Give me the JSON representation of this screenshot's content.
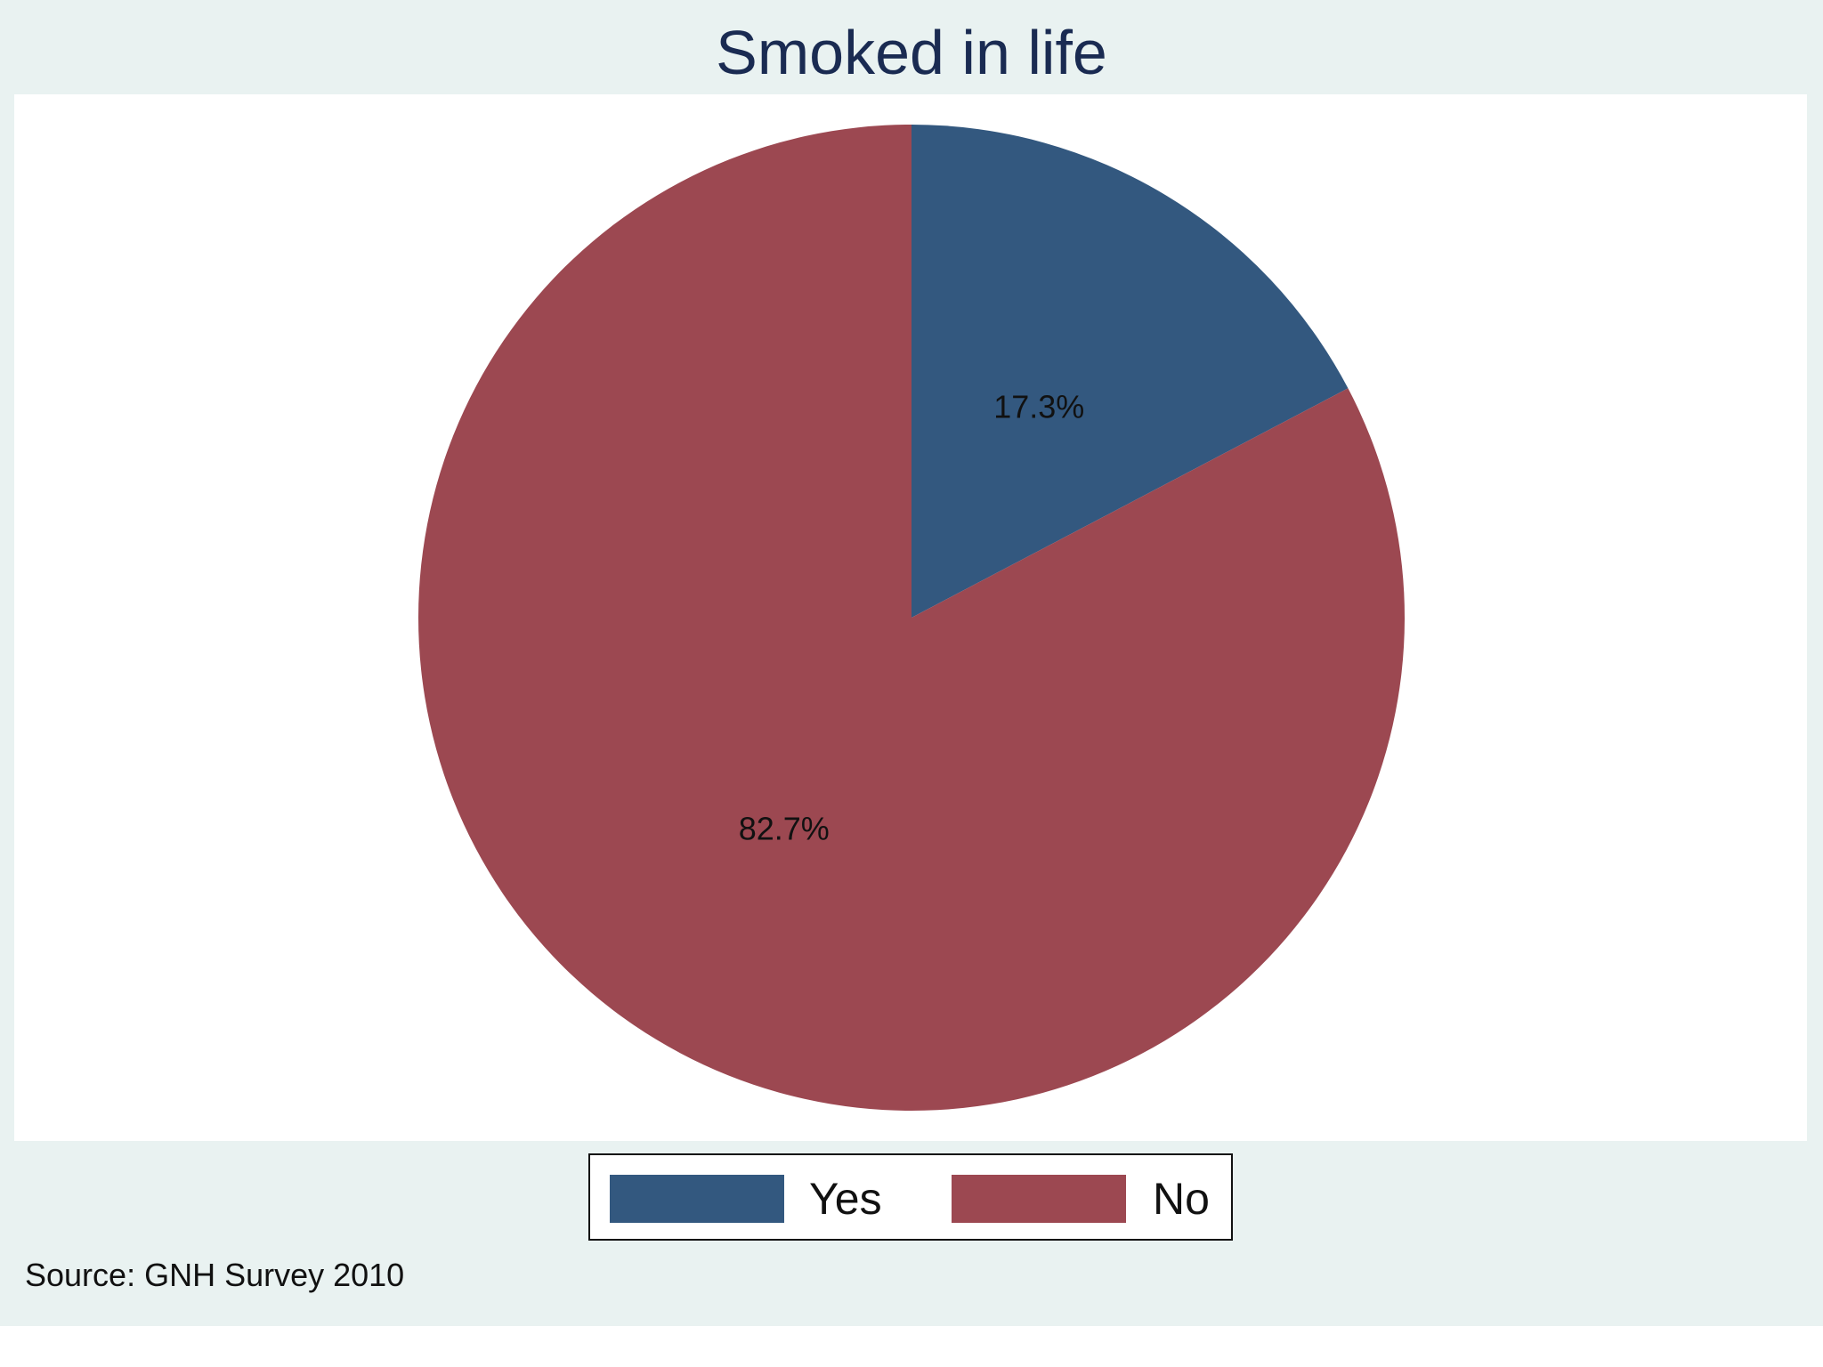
{
  "chart_data": {
    "type": "pie",
    "title": "Smoked in life",
    "categories": [
      "Yes",
      "No"
    ],
    "values": [
      17.3,
      82.7
    ],
    "labels": [
      "17.3%",
      "82.7%"
    ],
    "colors": [
      "#33587f",
      "#9c4851"
    ],
    "start_angle": "12 o'clock, clockwise",
    "legend": {
      "position": "bottom-center",
      "entries": [
        "Yes",
        "No"
      ]
    },
    "note": "Source: GNH Survey 2010"
  }
}
